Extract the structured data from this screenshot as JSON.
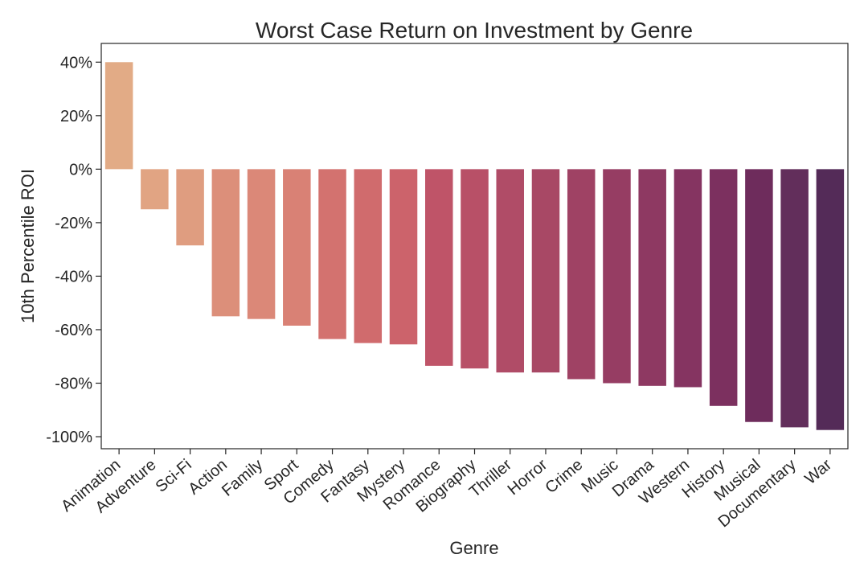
{
  "chart_data": {
    "type": "bar",
    "title": "Worst Case Return on Investment by Genre",
    "xlabel": "Genre",
    "ylabel": "10th Percentile ROI",
    "categories": [
      "Animation",
      "Adventure",
      "Sci-Fi",
      "Action",
      "Family",
      "Sport",
      "Comedy",
      "Fantasy",
      "Mystery",
      "Romance",
      "Biography",
      "Thriller",
      "Horror",
      "Crime",
      "Music",
      "Drama",
      "Western",
      "History",
      "Musical",
      "Documentary",
      "War"
    ],
    "values": [
      40,
      -15,
      -28.5,
      -55,
      -56,
      -58.5,
      -63.5,
      -65,
      -65.5,
      -73.5,
      -74.5,
      -76,
      -76,
      -78.5,
      -80,
      -81,
      -81.5,
      -88.5,
      -94.5,
      -96.5,
      -97.5
    ],
    "ylim": [
      -104.5,
      47
    ],
    "yticks": [
      40,
      20,
      0,
      -20,
      -40,
      -60,
      -80,
      -100
    ],
    "ytick_labels": [
      "40%",
      "20%",
      "0%",
      "-20%",
      "-40%",
      "-60%",
      "-80%",
      "-100%"
    ],
    "grid": false,
    "legend": "none",
    "colors": [
      "#e2ab86",
      "#e1a483",
      "#df9d80",
      "#dc8f7a",
      "#db8878",
      "#d98175",
      "#d3726f",
      "#d06b6d",
      "#cc636b",
      "#bf5468",
      "#b85067",
      "#b04c67",
      "#a84865",
      "#9f4264",
      "#963d63",
      "#8e3962",
      "#853461",
      "#7c305f",
      "#6e2c5c",
      "#622e5b",
      "#542b58"
    ]
  }
}
